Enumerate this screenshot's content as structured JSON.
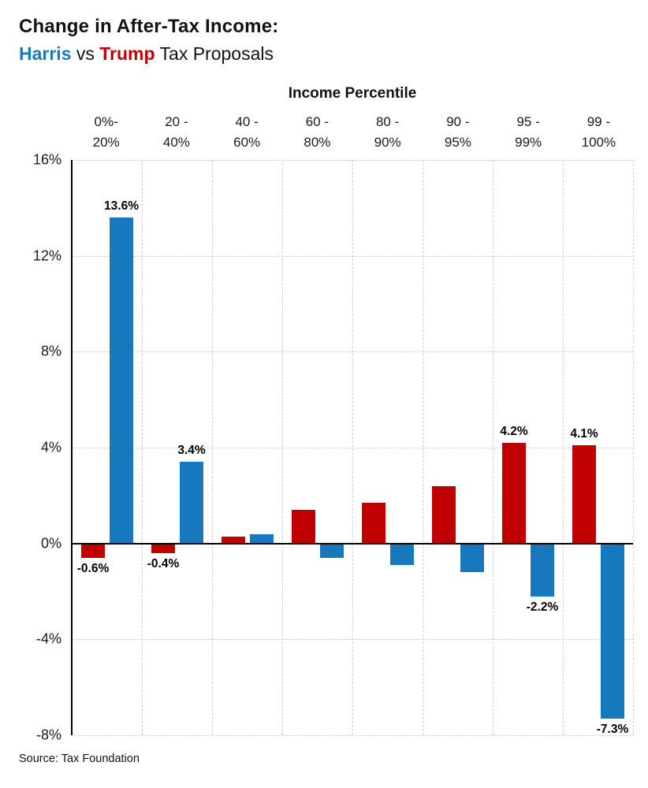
{
  "header": {
    "title": "Change in After-Tax Income:",
    "subtitle_harris": "Harris",
    "subtitle_vs": " vs ",
    "subtitle_trump": "Trump",
    "subtitle_rest": " Tax Proposals"
  },
  "footer": {
    "source": "Source: Tax Foundation"
  },
  "colors": {
    "harris_blue": "#1878be",
    "trump_red": "#c00000"
  },
  "chart_data": {
    "type": "bar",
    "title": "Income Percentile",
    "categories": [
      [
        "0%-",
        "20%"
      ],
      [
        "20 -",
        "40%"
      ],
      [
        "40 -",
        "60%"
      ],
      [
        "60 -",
        "80%"
      ],
      [
        "80 -",
        "90%"
      ],
      [
        "90 -",
        "95%"
      ],
      [
        "95 -",
        "99%"
      ],
      [
        "99 -",
        "100%"
      ]
    ],
    "series": [
      {
        "name": "Trump",
        "color": "#c00000",
        "values": [
          -0.6,
          -0.4,
          0.3,
          1.4,
          1.7,
          2.4,
          4.2,
          4.1
        ],
        "labels": [
          "-0.6%",
          "-0.4%",
          null,
          null,
          null,
          null,
          "4.2%",
          "4.1%"
        ]
      },
      {
        "name": "Harris",
        "color": "#1878be",
        "values": [
          13.6,
          3.4,
          0.4,
          -0.6,
          -0.9,
          -1.2,
          -2.2,
          -7.3
        ],
        "labels": [
          "13.6%",
          "3.4%",
          null,
          null,
          null,
          null,
          "-2.2%",
          "-7.3%"
        ]
      }
    ],
    "ylim": [
      -8,
      16
    ],
    "grid": true,
    "legend": "none",
    "yticks": [
      {
        "value": 16,
        "label": "16%"
      },
      {
        "value": 12,
        "label": "12%"
      },
      {
        "value": 8,
        "label": "8%"
      },
      {
        "value": 4,
        "label": "4%"
      },
      {
        "value": 0,
        "label": "0%"
      },
      {
        "value": -4,
        "label": "-4%"
      },
      {
        "value": -8,
        "label": "-8%"
      }
    ]
  }
}
